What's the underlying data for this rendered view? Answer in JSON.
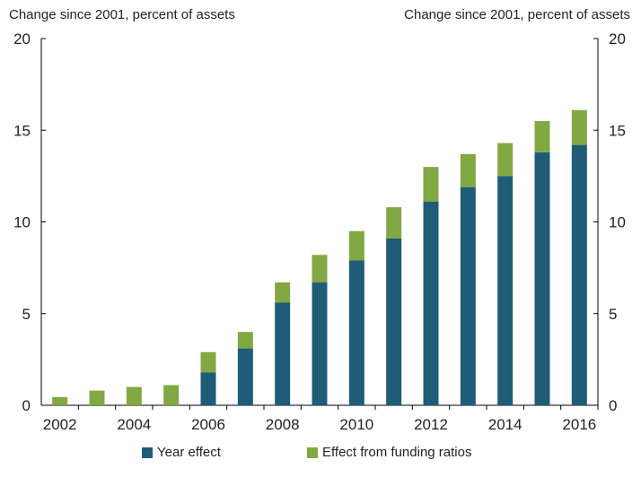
{
  "chart_data": {
    "type": "bar",
    "stacked": true,
    "ylabel_left": "Change since 2001, percent of assets",
    "ylabel_right": "Change since 2001, percent of assets",
    "ylim": [
      0,
      20
    ],
    "yticks": [
      0,
      5,
      10,
      15,
      20
    ],
    "categories": [
      "2002",
      "2003",
      "2004",
      "2005",
      "2006",
      "2007",
      "2008",
      "2009",
      "2010",
      "2011",
      "2012",
      "2013",
      "2014",
      "2015",
      "2016"
    ],
    "xtick_labels": [
      "2002",
      "2004",
      "2006",
      "2008",
      "2010",
      "2012",
      "2014",
      "2016"
    ],
    "series": [
      {
        "name": "Year effect",
        "color": "#1f5c78",
        "values": [
          0,
          0,
          0,
          0,
          1.8,
          3.1,
          5.6,
          6.7,
          7.9,
          9.1,
          11.1,
          11.9,
          12.5,
          13.8,
          14.2
        ]
      },
      {
        "name": "Effect from funding ratios",
        "color": "#82a843",
        "values": [
          0.45,
          0.8,
          1.0,
          1.1,
          1.1,
          0.9,
          1.1,
          1.5,
          1.6,
          1.7,
          1.9,
          1.8,
          1.8,
          1.7,
          1.9
        ]
      }
    ],
    "legend": [
      "Year effect",
      "Effect from funding ratios"
    ],
    "legend_position": "bottom"
  }
}
